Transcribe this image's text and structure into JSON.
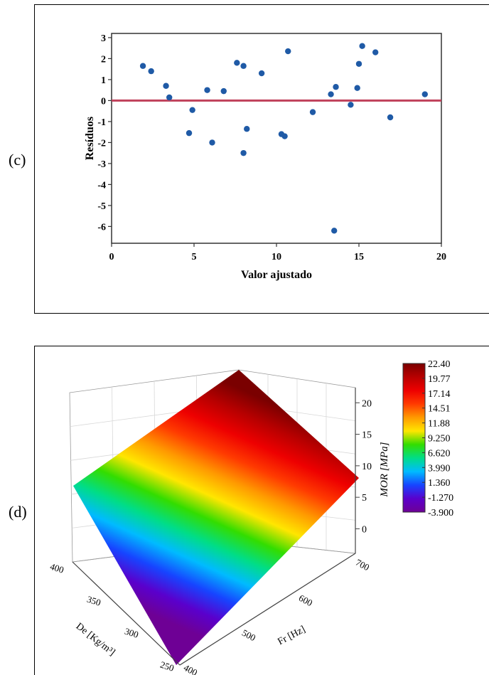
{
  "panels": {
    "c": {
      "label": "(c)"
    },
    "d": {
      "label": "(d)"
    }
  },
  "chart_data": [
    {
      "type": "scatter",
      "xlabel": "Valor ajustado",
      "ylabel": "Resíduos",
      "xlim": [
        0,
        20
      ],
      "ylim": [
        -6.8,
        3.2
      ],
      "x_ticks": [
        "0",
        "5",
        "10",
        "15",
        "20"
      ],
      "y_ticks": [
        "3",
        "2",
        "1",
        "0",
        "-1",
        "-2",
        "-3",
        "-4",
        "-5",
        "-6"
      ],
      "reference_line": {
        "y": 0,
        "color": "#c0405a"
      },
      "point_color": "#1f5aa6",
      "points": [
        {
          "x": 1.9,
          "y": 1.65
        },
        {
          "x": 2.4,
          "y": 1.4
        },
        {
          "x": 3.3,
          "y": 0.7
        },
        {
          "x": 3.5,
          "y": 0.15
        },
        {
          "x": 4.7,
          "y": -1.55
        },
        {
          "x": 4.9,
          "y": -0.45
        },
        {
          "x": 5.8,
          "y": 0.5
        },
        {
          "x": 6.1,
          "y": -2.0
        },
        {
          "x": 6.8,
          "y": 0.45
        },
        {
          "x": 7.6,
          "y": 1.8
        },
        {
          "x": 8.0,
          "y": 1.65
        },
        {
          "x": 8.0,
          "y": -2.5
        },
        {
          "x": 8.2,
          "y": -1.35
        },
        {
          "x": 9.1,
          "y": 1.3
        },
        {
          "x": 10.3,
          "y": -1.6
        },
        {
          "x": 10.5,
          "y": -1.7
        },
        {
          "x": 10.7,
          "y": 2.35
        },
        {
          "x": 12.2,
          "y": -0.55
        },
        {
          "x": 13.3,
          "y": 0.3
        },
        {
          "x": 13.6,
          "y": 0.65
        },
        {
          "x": 13.5,
          "y": -6.2
        },
        {
          "x": 14.5,
          "y": -0.2
        },
        {
          "x": 14.9,
          "y": 0.6
        },
        {
          "x": 15.0,
          "y": 1.75
        },
        {
          "x": 15.2,
          "y": 2.6
        },
        {
          "x": 16.0,
          "y": 2.3
        },
        {
          "x": 16.9,
          "y": -0.8
        },
        {
          "x": 19.0,
          "y": 0.3
        }
      ]
    },
    {
      "type": "surface",
      "zlabel": "MOR [MPa]",
      "xlabel": "Fr [Hz]",
      "ylabel": "De [Kg/m³]",
      "x_ticks": [
        "400",
        "500",
        "600",
        "700"
      ],
      "y_ticks": [
        "250",
        "300",
        "350",
        "400"
      ],
      "z_ticks": [
        "0",
        "5",
        "10",
        "15",
        "20"
      ],
      "zlim": [
        -3.9,
        22.4
      ],
      "colorbar": {
        "ticks": [
          "22.40",
          "19.77",
          "17.14",
          "14.51",
          "11.88",
          "9.250",
          "6.620",
          "3.990",
          "1.360",
          "-1.270",
          "-3.900"
        ],
        "colors": [
          "#7a0000",
          "#b80000",
          "#ee0000",
          "#ff3b00",
          "#ff9a00",
          "#ffe600",
          "#33dd00",
          "#00dd88",
          "#00bbff",
          "#1744ff",
          "#5a00cc",
          "#6e0095"
        ]
      }
    }
  ]
}
